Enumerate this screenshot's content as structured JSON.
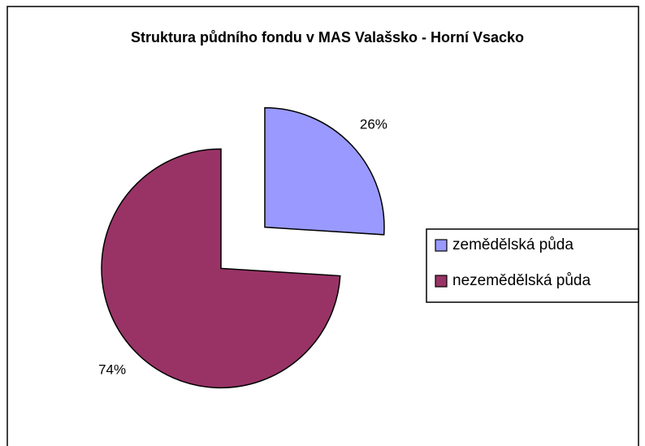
{
  "chart_data": {
    "type": "pie",
    "title": "Struktura půdního fondu v MAS Valašsko - Horní Vsacko",
    "categories": [
      "zemědělská půda",
      "nezemědělská půda"
    ],
    "values": [
      26,
      74
    ],
    "value_labels": [
      "26%",
      "74%"
    ],
    "colors": [
      "#9999ff",
      "#993366"
    ],
    "legend": "right"
  }
}
